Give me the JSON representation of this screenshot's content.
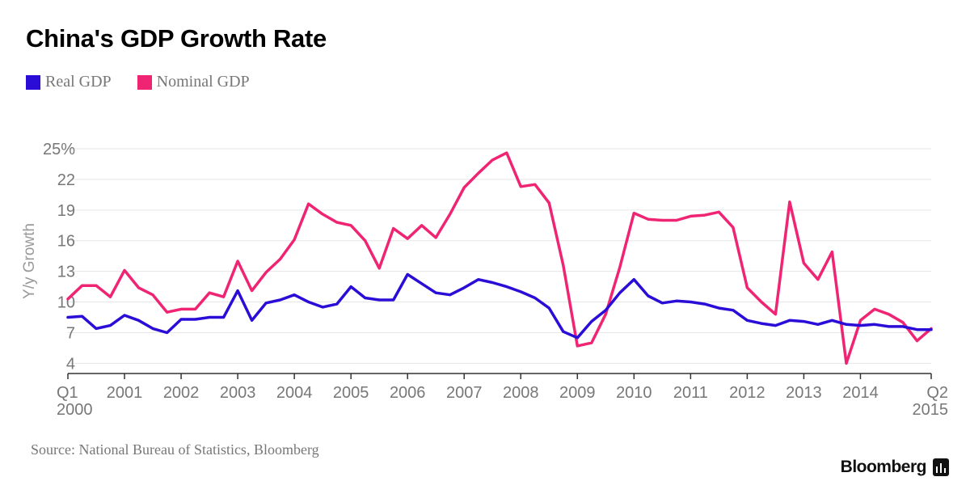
{
  "title": "China's GDP Growth Rate",
  "source": "Source: National Bureau of Statistics, Bloomberg",
  "brand": "Bloomberg",
  "brand_icon": "bar-chart-icon",
  "colors": {
    "real": "#2a0dd6",
    "nominal": "#ef2574",
    "grid": "#e6e6e6",
    "axis": "#333333",
    "text": "#777777"
  },
  "chart_data": {
    "type": "line",
    "title": "China's GDP Growth Rate",
    "xlabel": "",
    "ylabel": "Y/y Growth",
    "ylim": [
      3,
      25
    ],
    "yticks": [
      4,
      7,
      10,
      13,
      16,
      19,
      22,
      25
    ],
    "ytick_labels": [
      "4",
      "7",
      "10",
      "13",
      "16",
      "19",
      "22",
      "25%"
    ],
    "x_start": "2000-Q1",
    "x_end": "2015-Q2",
    "x_tick_labels": [
      {
        "quarter": "2000-Q1",
        "lines": [
          "Q1",
          "2000"
        ]
      },
      {
        "quarter": "2001-Q1",
        "lines": [
          "2001"
        ]
      },
      {
        "quarter": "2002-Q1",
        "lines": [
          "2002"
        ]
      },
      {
        "quarter": "2003-Q1",
        "lines": [
          "2003"
        ]
      },
      {
        "quarter": "2004-Q1",
        "lines": [
          "2004"
        ]
      },
      {
        "quarter": "2005-Q1",
        "lines": [
          "2005"
        ]
      },
      {
        "quarter": "2006-Q1",
        "lines": [
          "2006"
        ]
      },
      {
        "quarter": "2007-Q1",
        "lines": [
          "2007"
        ]
      },
      {
        "quarter": "2008-Q1",
        "lines": [
          "2008"
        ]
      },
      {
        "quarter": "2009-Q1",
        "lines": [
          "2009"
        ]
      },
      {
        "quarter": "2010-Q1",
        "lines": [
          "2010"
        ]
      },
      {
        "quarter": "2011-Q1",
        "lines": [
          "2011"
        ]
      },
      {
        "quarter": "2012-Q1",
        "lines": [
          "2012"
        ]
      },
      {
        "quarter": "2013-Q1",
        "lines": [
          "2013"
        ]
      },
      {
        "quarter": "2014-Q1",
        "lines": [
          "2014"
        ]
      },
      {
        "quarter": "2015-Q2",
        "lines": [
          "Q2",
          "2015"
        ]
      }
    ],
    "legend_position": "top-left",
    "grid": true,
    "series": [
      {
        "name": "Real GDP",
        "color": "#2a0dd6",
        "values": [
          8.5,
          8.6,
          7.4,
          7.7,
          8.7,
          8.2,
          7.4,
          7.0,
          8.3,
          8.3,
          8.5,
          8.5,
          11.1,
          8.2,
          9.9,
          10.2,
          10.7,
          10.0,
          9.5,
          9.8,
          11.5,
          10.4,
          10.2,
          10.2,
          12.7,
          11.8,
          10.9,
          10.7,
          11.4,
          12.2,
          11.9,
          11.5,
          11.0,
          10.4,
          9.4,
          7.1,
          6.5,
          8.1,
          9.2,
          10.9,
          12.2,
          10.6,
          9.9,
          10.1,
          10.0,
          9.8,
          9.4,
          9.2,
          8.2,
          7.9,
          7.7,
          8.2,
          8.1,
          7.8,
          8.2,
          7.8,
          7.7,
          7.8,
          7.6,
          7.6,
          7.3,
          7.3
        ]
      },
      {
        "name": "Nominal GDP",
        "color": "#ef2574",
        "values": [
          10.3,
          11.6,
          11.6,
          10.5,
          13.1,
          11.4,
          10.7,
          9.0,
          9.3,
          9.3,
          10.9,
          10.5,
          14.0,
          11.1,
          12.9,
          14.2,
          16.1,
          19.6,
          18.6,
          17.8,
          17.5,
          16.0,
          13.3,
          17.2,
          16.2,
          17.5,
          16.3,
          18.6,
          21.2,
          22.6,
          23.9,
          24.6,
          21.3,
          21.5,
          19.7,
          13.6,
          5.7,
          6.0,
          8.8,
          13.4,
          18.7,
          18.1,
          18.0,
          18.0,
          18.4,
          18.5,
          18.8,
          17.3,
          11.4,
          10.0,
          8.8,
          19.8,
          13.8,
          12.2,
          14.9,
          4.0,
          8.2,
          9.3,
          8.8,
          8.0,
          6.2,
          7.4
        ]
      }
    ]
  }
}
